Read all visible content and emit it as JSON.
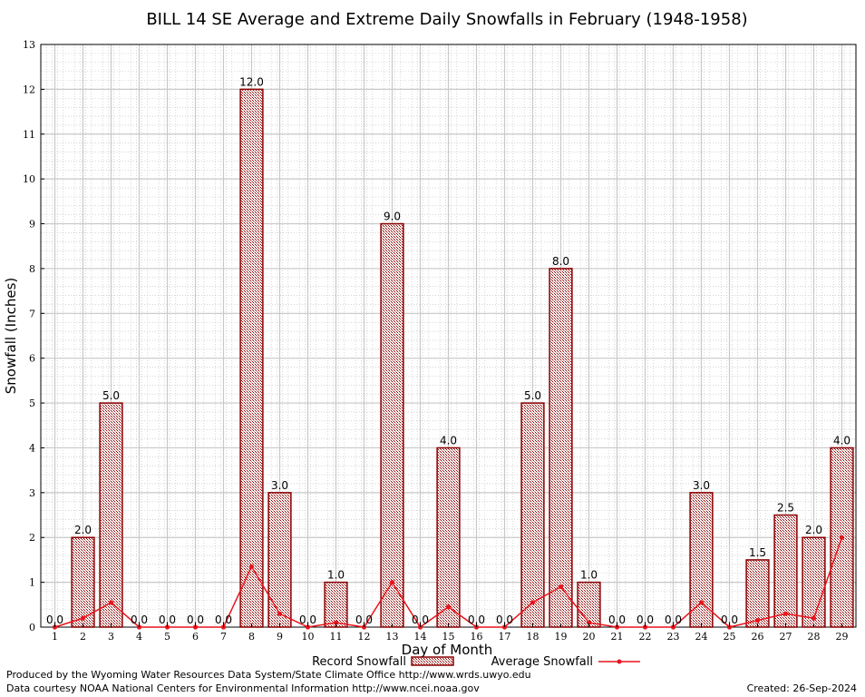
{
  "chart_data": {
    "type": "bar",
    "title": "BILL 14 SE Average and Extreme Daily Snowfalls in February (1948-1958)",
    "xlabel": "Day of Month",
    "ylabel": "Snowfall (Inches)",
    "ylim": [
      0,
      13
    ],
    "yticks": [
      "0",
      "1",
      "2",
      "3",
      "4",
      "5",
      "6",
      "7",
      "8",
      "9",
      "10",
      "11",
      "12",
      "13"
    ],
    "categories": [
      "1",
      "2",
      "3",
      "4",
      "5",
      "6",
      "7",
      "8",
      "9",
      "10",
      "11",
      "12",
      "13",
      "14",
      "15",
      "16",
      "17",
      "18",
      "19",
      "20",
      "21",
      "22",
      "23",
      "24",
      "25",
      "26",
      "27",
      "28",
      "29"
    ],
    "series": [
      {
        "name": "Record Snowfall",
        "kind": "bar",
        "color": "#8b0000",
        "values": [
          0,
          2,
          5,
          0,
          0,
          0,
          0,
          12,
          3,
          0,
          1,
          0,
          9,
          0,
          4,
          0,
          0,
          5,
          8,
          1,
          0,
          0,
          0,
          3,
          0,
          1.5,
          2.5,
          2,
          4
        ],
        "labels": [
          "0.0",
          "2.0",
          "5.0",
          "0.0",
          "0.0",
          "0.0",
          "0.0",
          "12.0",
          "3.0",
          "0.0",
          "1.0",
          "0.0",
          "9.0",
          "0.0",
          "4.0",
          "0.0",
          "0.0",
          "5.0",
          "8.0",
          "1.0",
          "0.0",
          "0.0",
          "0.0",
          "3.0",
          "0.0",
          "1.5",
          "2.5",
          "2.0",
          "4.0"
        ]
      },
      {
        "name": "Average Snowfall",
        "kind": "line",
        "color": "#e8141c",
        "values": [
          0,
          0.2,
          0.55,
          0,
          0,
          0,
          0,
          1.35,
          0.3,
          0,
          0.1,
          0,
          1.0,
          0,
          0.45,
          0,
          0,
          0.55,
          0.9,
          0.1,
          0,
          0,
          0,
          0.55,
          0,
          0.15,
          0.3,
          0.2,
          2.0
        ]
      }
    ],
    "grid": true,
    "legend": "bottom-center"
  },
  "footer": {
    "produced_by": "Produced by the Wyoming Water Resources Data System/State Climate Office http://www.wrds.uwyo.edu",
    "courtesy": "Data courtesy NOAA National Centers for Environmental Information http://www.ncei.noaa.gov",
    "created": "Created:  26-Sep-2024"
  }
}
